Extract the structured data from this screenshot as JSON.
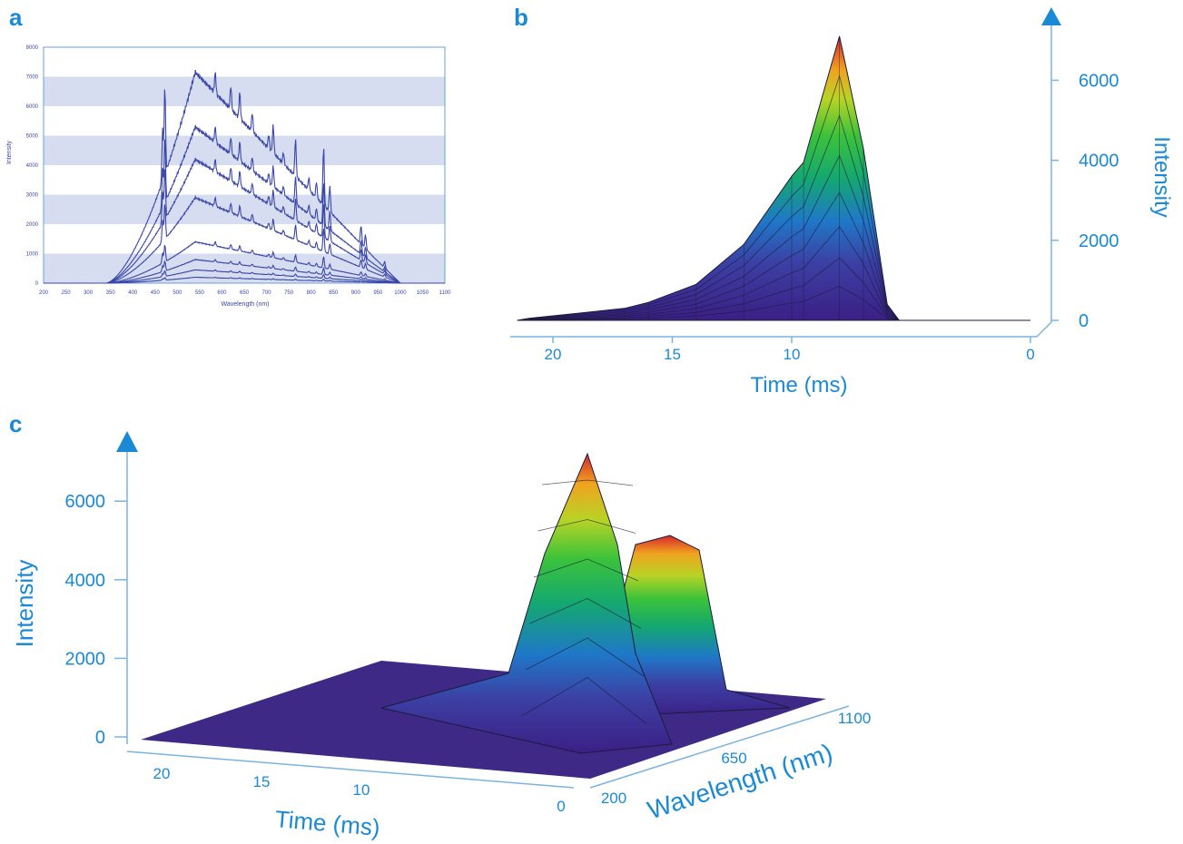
{
  "figure": {
    "panel_labels": [
      "a",
      "b",
      "c"
    ],
    "accent_color": "#1a8ad4",
    "line_color": "#3a46a8",
    "band_color": "#d6ddf0"
  },
  "chart_data": [
    {
      "panel": "a",
      "type": "line",
      "xlabel": "Wavelength (nm)",
      "ylabel": "Intensity",
      "xlim": [
        200,
        1100
      ],
      "ylim": [
        0,
        8000
      ],
      "x_ticks": [
        "200",
        "250",
        "300",
        "350",
        "400",
        "450",
        "500",
        "550",
        "600",
        "650",
        "700",
        "750",
        "800",
        "850",
        "900",
        "950",
        "1000",
        "1050",
        "1100"
      ],
      "y_ticks": [
        "0",
        "1000",
        "2000",
        "3000",
        "4000",
        "5000",
        "6000",
        "7000",
        "8000"
      ],
      "grid": "horizontal bands",
      "series": [
        {
          "peak": 7150
        },
        {
          "peak": 5300
        },
        {
          "peak": 4200
        },
        {
          "peak": 2900
        },
        {
          "peak": 1400
        },
        {
          "peak": 800
        },
        {
          "peak": 450
        },
        {
          "peak": 200
        }
      ],
      "spectral_peaks": [
        {
          "x": 472,
          "rel": 0.95
        },
        {
          "x": 467,
          "rel": 0.55
        },
        {
          "x": 585,
          "rel": 0.22
        },
        {
          "x": 620,
          "rel": 0.25
        },
        {
          "x": 640,
          "rel": 0.28
        },
        {
          "x": 668,
          "rel": 0.2
        },
        {
          "x": 705,
          "rel": 0.15
        },
        {
          "x": 715,
          "rel": 0.3
        },
        {
          "x": 738,
          "rel": 0.12
        },
        {
          "x": 765,
          "rel": 0.4
        },
        {
          "x": 795,
          "rel": 0.13
        },
        {
          "x": 812,
          "rel": 0.17
        },
        {
          "x": 828,
          "rel": 0.62
        },
        {
          "x": 842,
          "rel": 0.28
        },
        {
          "x": 912,
          "rel": 0.2
        },
        {
          "x": 922,
          "rel": 0.15
        },
        {
          "x": 965,
          "rel": 0.07
        }
      ]
    },
    {
      "panel": "b",
      "type": "area",
      "xlabel": "Time (ms)",
      "ylabel": "Intensity",
      "x_ticks": [
        "20",
        "15",
        "10",
        "0"
      ],
      "y_ticks": [
        "0",
        "2000",
        "4000",
        "6000"
      ],
      "x_reversed": true,
      "envelope": [
        {
          "t": 21,
          "v": 50
        },
        {
          "t": 17,
          "v": 300
        },
        {
          "t": 16,
          "v": 450
        },
        {
          "t": 14,
          "v": 900
        },
        {
          "t": 12,
          "v": 1900
        },
        {
          "t": 10,
          "v": 3600
        },
        {
          "t": 9.5,
          "v": 3950
        },
        {
          "t": 8,
          "v": 7100
        },
        {
          "t": 7,
          "v": 4300
        },
        {
          "t": 6,
          "v": 400
        },
        {
          "t": 5.5,
          "v": 0
        }
      ]
    },
    {
      "panel": "c",
      "type": "surface",
      "xlabel": "Time (ms)",
      "ylabel": "Wavelength (nm)",
      "zlabel": "Intensity",
      "x_ticks": [
        "20",
        "15",
        "10",
        "0"
      ],
      "y_ticks": [
        "200",
        "650",
        "1100"
      ],
      "z_ticks": [
        "0",
        "2000",
        "4000",
        "6000"
      ],
      "peaks": [
        {
          "t": 8,
          "wavelength": 480,
          "intensity": 7100
        },
        {
          "t": 7.5,
          "wavelength": 800,
          "intensity": 5000
        }
      ]
    }
  ]
}
